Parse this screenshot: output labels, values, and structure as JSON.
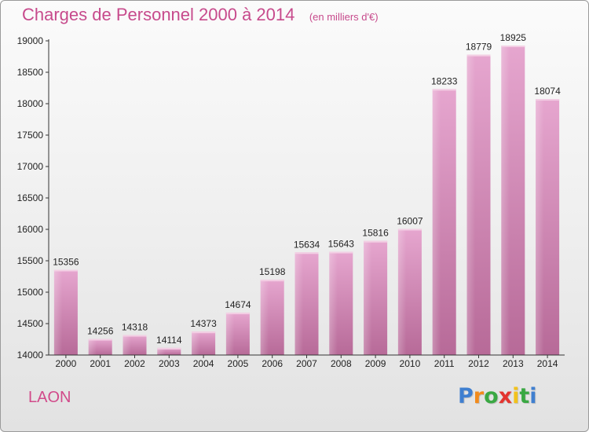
{
  "chart_data": {
    "type": "bar",
    "title": "Charges de Personnel 2000 à 2014",
    "subtitle": "(en milliers d'€)",
    "categories": [
      "2000",
      "2001",
      "2002",
      "2003",
      "2004",
      "2005",
      "2006",
      "2007",
      "2008",
      "2009",
      "2010",
      "2011",
      "2012",
      "2013",
      "2014"
    ],
    "values": [
      15356,
      14256,
      14318,
      14114,
      14373,
      14674,
      15198,
      15634,
      15643,
      15816,
      16007,
      18233,
      18779,
      18925,
      18074
    ],
    "ylim": [
      14000,
      19000
    ],
    "yticks": [
      14000,
      14500,
      15000,
      15500,
      16000,
      16500,
      17000,
      17500,
      18000,
      18500,
      19000
    ],
    "grid": false,
    "bar_color": "#d98bb8"
  },
  "footer": {
    "place": "LAON",
    "logo": {
      "letters": [
        "P",
        "r",
        "o",
        "x",
        "i",
        "t",
        "i"
      ],
      "colors": [
        "#3f7fd0",
        "#f28b1c",
        "#3aa843",
        "#e3342f",
        "#f2c21c",
        "#3aa843",
        "#3f7fd0"
      ]
    }
  }
}
